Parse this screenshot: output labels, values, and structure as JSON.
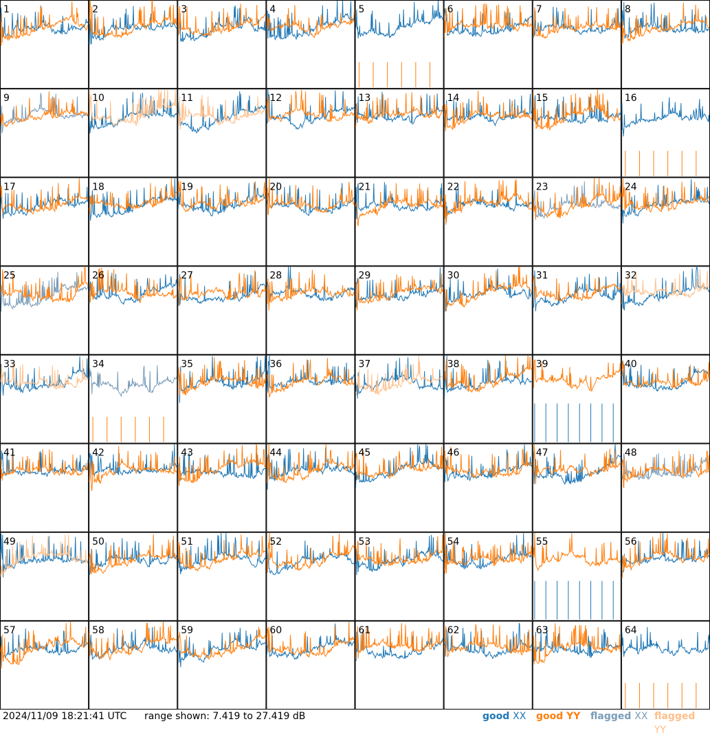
{
  "chart_data": {
    "type": "line",
    "title": "",
    "grid": {
      "rows": 8,
      "cols": 8
    },
    "panels": [
      "1",
      "2",
      "3",
      "4",
      "5",
      "6",
      "7",
      "8",
      "9",
      "10",
      "11",
      "12",
      "13",
      "14",
      "15",
      "16",
      "17",
      "18",
      "19",
      "20",
      "21",
      "22",
      "23",
      "24",
      "25",
      "26",
      "27",
      "28",
      "29",
      "30",
      "31",
      "32",
      "33",
      "34",
      "35",
      "36",
      "37",
      "38",
      "39",
      "40",
      "41",
      "42",
      "43",
      "44",
      "45",
      "46",
      "47",
      "48",
      "49",
      "50",
      "51",
      "52",
      "53",
      "54",
      "55",
      "56",
      "57",
      "58",
      "59",
      "60",
      "61",
      "62",
      "63",
      "64"
    ],
    "ylim": [
      7.419,
      27.419
    ],
    "series": [
      {
        "name": "good XX",
        "color": "#1f77b4"
      },
      {
        "name": "good YY",
        "color": "#ff7f0e"
      },
      {
        "name": "flagged XX",
        "color": "#7a9cb8"
      },
      {
        "name": "flagged YY",
        "color": "#ffbf8a"
      }
    ],
    "panel_status": {
      "xx_flagged_or_dropouts": [
        "9",
        "23",
        "25",
        "34",
        "39",
        "48",
        "55"
      ],
      "yy_flagged_or_spikes": [
        "5",
        "10",
        "11",
        "16",
        "32",
        "33",
        "37",
        "49",
        "64"
      ],
      "xx_dropouts_only": [
        "39",
        "55"
      ],
      "yy_dropouts_only": [
        "5",
        "16",
        "34",
        "64"
      ]
    }
  },
  "footer": {
    "timestamp": "2024/11/09 18:21:41 UTC",
    "range_text": "range shown: 7.419 to 27.419 dB",
    "legend": [
      {
        "prefix": "good ",
        "pol": "XX",
        "color": "#1f77b4"
      },
      {
        "prefix": "good ",
        "pol": "YY",
        "color": "#ff7f0e"
      },
      {
        "prefix": "flagged ",
        "pol": "XX",
        "color": "#7a9cb8"
      },
      {
        "prefix": "flagged ",
        "pol": "YY",
        "color": "#ffbf8a"
      }
    ]
  }
}
